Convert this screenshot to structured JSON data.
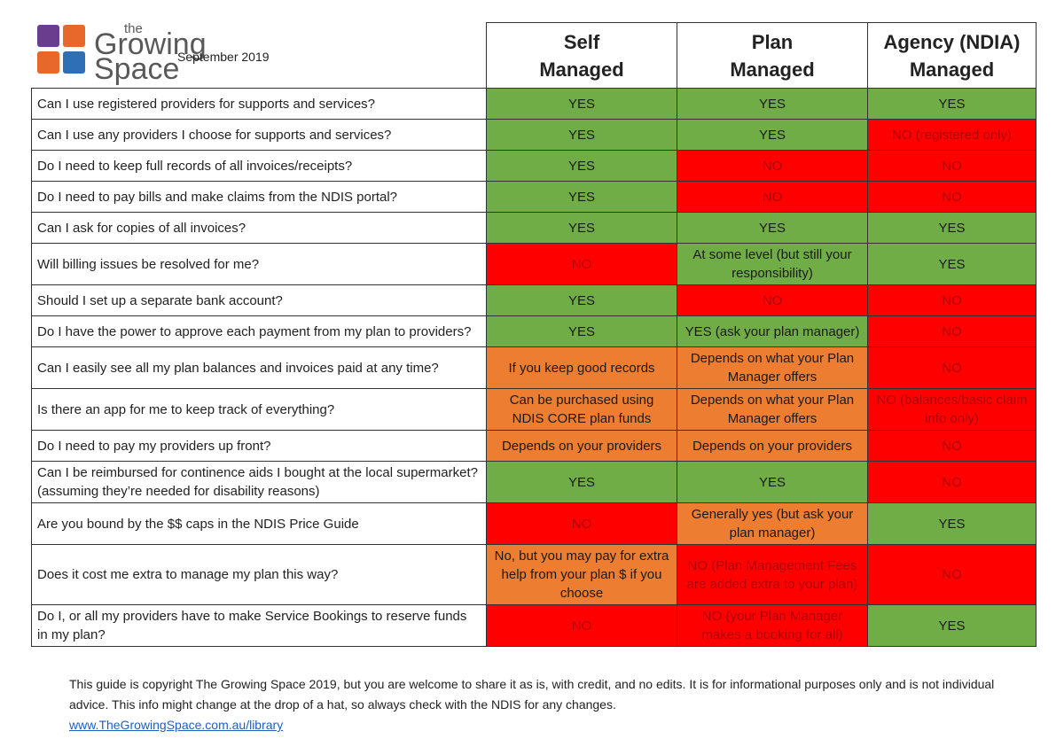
{
  "logo": {
    "small": "the",
    "line1": "Growing",
    "line2": "Space"
  },
  "date": "September 2019",
  "headers": [
    [
      "Self",
      "Managed"
    ],
    [
      "Plan",
      "Managed"
    ],
    [
      "Agency (NDIA)",
      "Managed"
    ]
  ],
  "rows": [
    {
      "question": "Can I use registered providers for supports and services?",
      "cells": [
        {
          "text": "YES",
          "fill": "#70ad47"
        },
        {
          "text": "YES",
          "fill": "#70ad47"
        },
        {
          "text": "YES",
          "fill": "#70ad47"
        }
      ]
    },
    {
      "question": "Can I use any providers I choose for supports and services?",
      "cells": [
        {
          "text": "YES",
          "fill": "#70ad47"
        },
        {
          "text": "YES",
          "fill": "#70ad47"
        },
        {
          "text": "NO (registered only)",
          "fill": "#ff0000"
        }
      ]
    },
    {
      "question": "Do I need to keep full records of all invoices/receipts?",
      "cells": [
        {
          "text": "YES",
          "fill": "#70ad47"
        },
        {
          "text": "NO",
          "fill": "#ff0000"
        },
        {
          "text": "NO",
          "fill": "#ff0000"
        }
      ]
    },
    {
      "question": "Do I need to pay bills and make claims from the NDIS portal?",
      "cells": [
        {
          "text": "YES",
          "fill": "#70ad47"
        },
        {
          "text": "NO",
          "fill": "#ff0000"
        },
        {
          "text": "NO",
          "fill": "#ff0000"
        }
      ]
    },
    {
      "question": "Can I ask for copies of all invoices?",
      "cells": [
        {
          "text": "YES",
          "fill": "#70ad47"
        },
        {
          "text": "YES",
          "fill": "#70ad47"
        },
        {
          "text": "YES",
          "fill": "#70ad47"
        }
      ]
    },
    {
      "question": "Will billing issues be resolved for me?",
      "cells": [
        {
          "text": "NO",
          "fill": "#ff0000"
        },
        {
          "text": "At some level (but still your responsibility)",
          "fill": "#70ad47"
        },
        {
          "text": "YES",
          "fill": "#70ad47"
        }
      ]
    },
    {
      "question": "Should I set up a separate bank account?",
      "cells": [
        {
          "text": "YES",
          "fill": "#70ad47"
        },
        {
          "text": "NO",
          "fill": "#ff0000"
        },
        {
          "text": "NO",
          "fill": "#ff0000"
        }
      ]
    },
    {
      "question": "Do I have the power to approve each payment from my plan to providers?",
      "cells": [
        {
          "text": "YES",
          "fill": "#70ad47"
        },
        {
          "text": "YES (ask your plan manager)",
          "fill": "#70ad47"
        },
        {
          "text": "NO",
          "fill": "#ff0000"
        }
      ]
    },
    {
      "question": "Can I easily see all my plan balances and invoices paid at any time?",
      "cells": [
        {
          "text": "If you keep good records",
          "fill": "#ed7d31"
        },
        {
          "text": "Depends on what your Plan Manager offers",
          "fill": "#ed7d31"
        },
        {
          "text": "NO",
          "fill": "#ff0000"
        }
      ]
    },
    {
      "question": "Is there an app for me to keep track of everything?",
      "cells": [
        {
          "text": "Can be purchased using NDIS CORE plan funds",
          "fill": "#ed7d31"
        },
        {
          "text": "Depends on what your Plan Manager offers",
          "fill": "#ed7d31"
        },
        {
          "text": "NO (balances/basic claim info only)",
          "fill": "#ff0000"
        }
      ]
    },
    {
      "question": "Do I need to pay my providers up front?",
      "cells": [
        {
          "text": "Depends on your providers",
          "fill": "#ed7d31"
        },
        {
          "text": "Depends on your providers",
          "fill": "#ed7d31"
        },
        {
          "text": "NO",
          "fill": "#ff0000"
        }
      ]
    },
    {
      "question": "Can I be reimbursed for continence aids I bought at the local supermarket? (assuming they’re needed for disability reasons)",
      "cells": [
        {
          "text": "YES",
          "fill": "#70ad47"
        },
        {
          "text": "YES",
          "fill": "#70ad47"
        },
        {
          "text": "NO",
          "fill": "#ff0000"
        }
      ]
    },
    {
      "question": "Are you bound by the $$ caps in the NDIS Price Guide",
      "cells": [
        {
          "text": "NO",
          "fill": "#ff0000"
        },
        {
          "text": "Generally yes (but ask your plan manager)",
          "fill": "#ed7d31"
        },
        {
          "text": "YES",
          "fill": "#70ad47"
        }
      ]
    },
    {
      "question": "Does it cost me extra to manage my plan this way?",
      "cells": [
        {
          "text": "No, but you may pay for extra help from your plan $ if you choose",
          "fill": "#ed7d31"
        },
        {
          "text": "NO (Plan Management Fees are added extra to your plan)",
          "fill": "#ff0000"
        },
        {
          "text": "NO",
          "fill": "#ff0000"
        }
      ]
    },
    {
      "question": "Do I, or all my providers have to make Service Bookings to reserve funds in my plan?",
      "cells": [
        {
          "text": "NO",
          "fill": "#ff0000"
        },
        {
          "text": "NO (your Plan Manager makes a booking for all)",
          "fill": "#ff0000"
        },
        {
          "text": "YES",
          "fill": "#70ad47"
        }
      ]
    }
  ],
  "footer": {
    "text": "This guide is copyright The Growing Space 2019, but you are welcome to share it as is, with credit, and no edits. It is for informational purposes only and is not individual advice. This info might change at the drop of a hat, so always check with the NDIS for any changes.",
    "link": "www.TheGrowingSpace.com.au/library"
  }
}
